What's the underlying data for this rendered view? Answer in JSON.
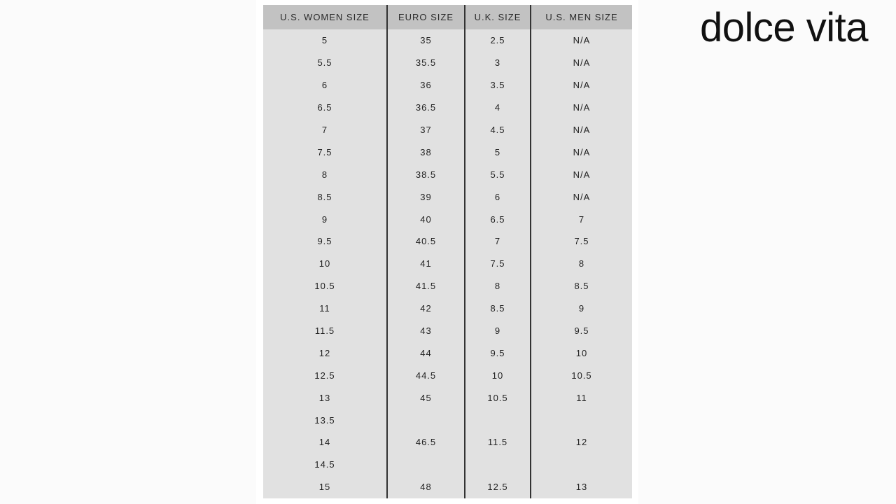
{
  "brand": {
    "logo_text": "dolce vita"
  },
  "table": {
    "headers": [
      "U.S. WOMEN SIZE",
      "EURO SIZE",
      "U.K. SIZE",
      "U.S. MEN SIZE"
    ],
    "rows": [
      [
        "5",
        "35",
        "2.5",
        "N/A"
      ],
      [
        "5.5",
        "35.5",
        "3",
        "N/A"
      ],
      [
        "6",
        "36",
        "3.5",
        "N/A"
      ],
      [
        "6.5",
        "36.5",
        "4",
        "N/A"
      ],
      [
        "7",
        "37",
        "4.5",
        "N/A"
      ],
      [
        "7.5",
        "38",
        "5",
        "N/A"
      ],
      [
        "8",
        "38.5",
        "5.5",
        "N/A"
      ],
      [
        "8.5",
        "39",
        "6",
        "N/A"
      ],
      [
        "9",
        "40",
        "6.5",
        "7"
      ],
      [
        "9.5",
        "40.5",
        "7",
        "7.5"
      ],
      [
        "10",
        "41",
        "7.5",
        "8"
      ],
      [
        "10.5",
        "41.5",
        "8",
        "8.5"
      ],
      [
        "11",
        "42",
        "8.5",
        "9"
      ],
      [
        "11.5",
        "43",
        "9",
        "9.5"
      ],
      [
        "12",
        "44",
        "9.5",
        "10"
      ],
      [
        "12.5",
        "44.5",
        "10",
        "10.5"
      ],
      [
        "13",
        "45",
        "10.5",
        "11"
      ],
      [
        "13.5",
        "",
        "",
        ""
      ],
      [
        "14",
        "46.5",
        "11.5",
        "12"
      ],
      [
        "14.5",
        "",
        "",
        ""
      ],
      [
        "15",
        "48",
        "12.5",
        "13"
      ]
    ]
  }
}
